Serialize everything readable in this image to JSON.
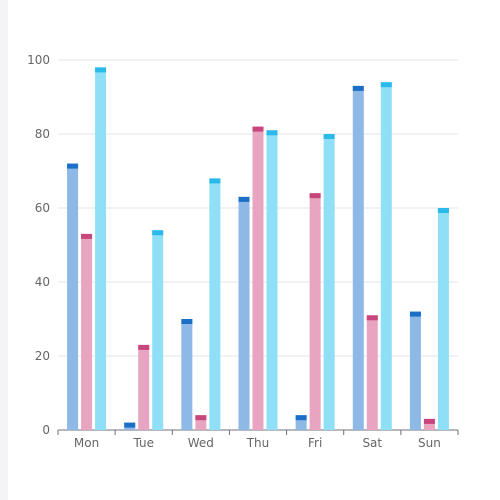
{
  "chart_data": {
    "type": "bar",
    "categories": [
      "Mon",
      "Tue",
      "Wed",
      "Thu",
      "Fri",
      "Sat",
      "Sun"
    ],
    "series": [
      {
        "color": "#8eb8e5",
        "cap_color": "#1c6fc6",
        "values": [
          72,
          2,
          30,
          63,
          4,
          93,
          32
        ]
      },
      {
        "color": "#e7a5c2",
        "cap_color": "#c9467c",
        "values": [
          53,
          23,
          4,
          82,
          64,
          31,
          3
        ]
      },
      {
        "color": "#8fe0f6",
        "cap_color": "#2bb9ea",
        "values": [
          98,
          54,
          68,
          81,
          80,
          94,
          60
        ]
      }
    ],
    "ylim": [
      0,
      100
    ],
    "yticks": [
      0,
      20,
      40,
      60,
      80,
      100
    ],
    "grid": true,
    "title": "",
    "xlabel": "",
    "ylabel": ""
  }
}
